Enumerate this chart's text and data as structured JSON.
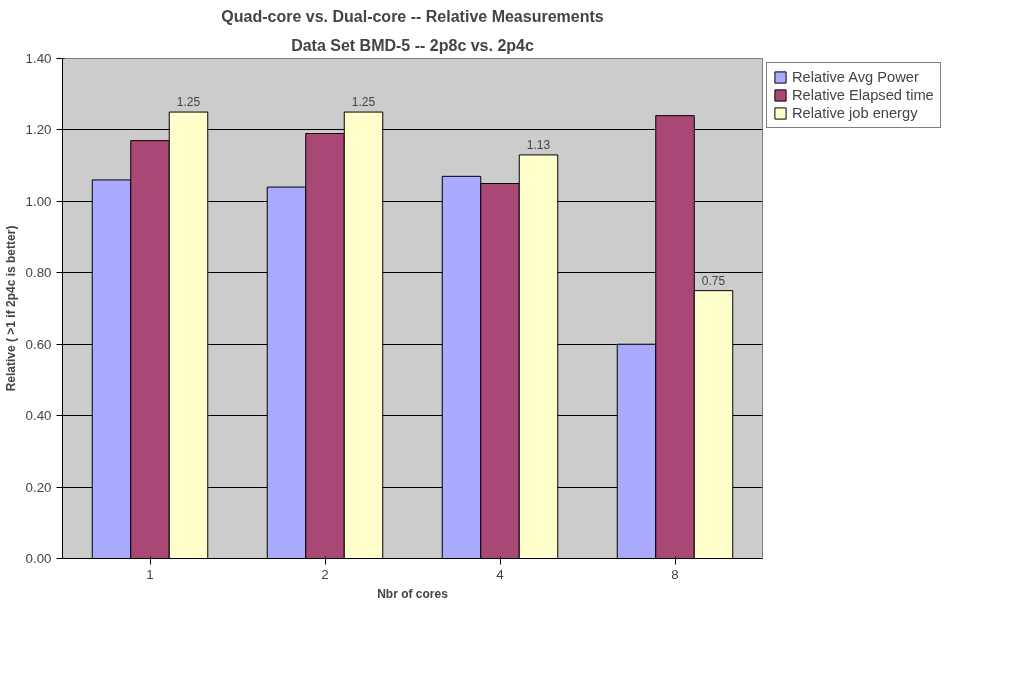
{
  "chart_data": {
    "type": "bar",
    "title": "Quad-core vs. Dual-core -- Relative Measurements",
    "subtitle": "Data Set BMD-5 -- 2p8c vs. 2p4c",
    "xlabel": "Nbr of cores",
    "ylabel": "Relative ( >1 if 2p4c is better)",
    "categories": [
      "1",
      "2",
      "4",
      "8"
    ],
    "series": [
      {
        "name": "Relative Avg Power",
        "color": "#aaaaff",
        "values": [
          1.06,
          1.04,
          1.07,
          0.6
        ]
      },
      {
        "name": "Relative Elapsed time",
        "color": "#a94775",
        "values": [
          1.17,
          1.19,
          1.05,
          1.24
        ]
      },
      {
        "name": "Relative job energy",
        "color": "#ffffcc",
        "values": [
          1.25,
          1.25,
          1.13,
          0.75
        ],
        "value_labels": [
          "1.25",
          "1.25",
          "1.13",
          "0.75"
        ]
      }
    ],
    "ylim": [
      0,
      1.4
    ],
    "yticks": [
      {
        "value": 0,
        "label": "0.00"
      },
      {
        "value": 0.2,
        "label": "0.20"
      },
      {
        "value": 0.4,
        "label": "0.40"
      },
      {
        "value": 0.6,
        "label": "0.60"
      },
      {
        "value": 0.8,
        "label": "0.80"
      },
      {
        "value": 1.0,
        "label": "1.00"
      },
      {
        "value": 1.2,
        "label": "1.20"
      },
      {
        "value": 1.4,
        "label": "1.40"
      }
    ],
    "grid": "y",
    "legend": "top right"
  }
}
